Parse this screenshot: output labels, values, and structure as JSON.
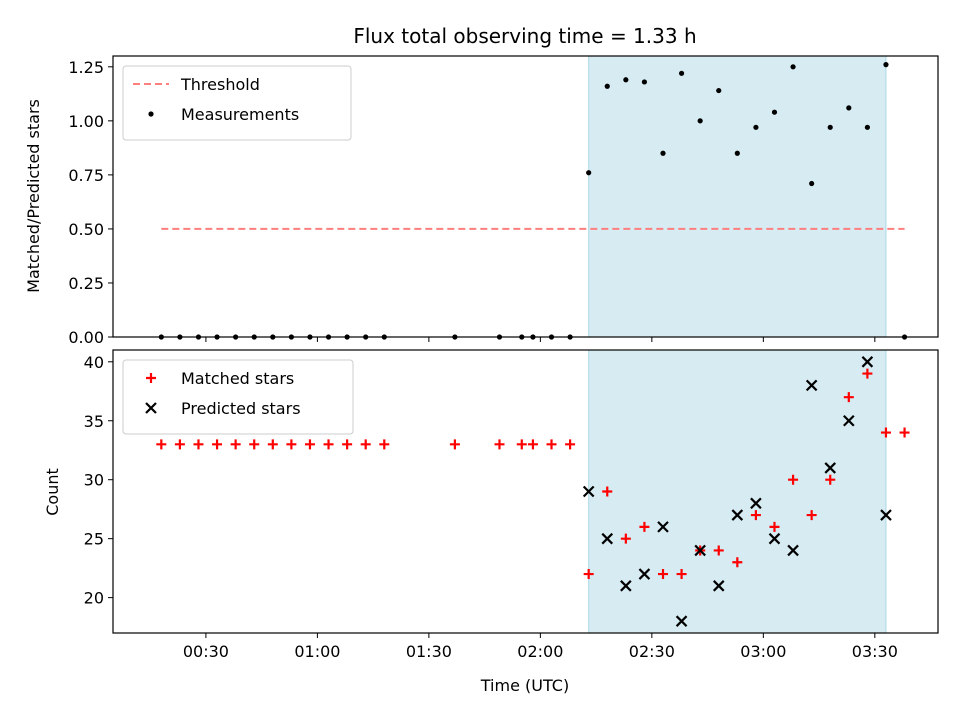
{
  "chart_data": [
    {
      "type": "scatter",
      "title": "Flux total observing time = 1.33 h",
      "ylabel": "Matched/Predicted stars",
      "xlim": [
        "00:05",
        "03:47"
      ],
      "ylim": [
        0,
        1.3
      ],
      "yticks": [
        0,
        0.25,
        0.5,
        0.75,
        1.0,
        1.25
      ],
      "ytick_labels": [
        "0.00",
        "0.25",
        "0.50",
        "0.75",
        "1.00",
        "1.25"
      ],
      "highlight_span": [
        "02:13",
        "03:33"
      ],
      "highlight_color": "#add8e6",
      "legend_position": "top-left",
      "threshold": {
        "name": "Threshold",
        "y": 0.5,
        "x_range": [
          "00:18",
          "03:38"
        ],
        "color": "#ff7f7f",
        "style": "dashed"
      },
      "series": [
        {
          "name": "Measurements",
          "color": "#000000",
          "marker": "dot",
          "points": [
            [
              "00:18",
              0
            ],
            [
              "00:23",
              0
            ],
            [
              "00:28",
              0
            ],
            [
              "00:33",
              0
            ],
            [
              "00:38",
              0
            ],
            [
              "00:43",
              0
            ],
            [
              "00:48",
              0
            ],
            [
              "00:53",
              0
            ],
            [
              "00:58",
              0
            ],
            [
              "01:03",
              0
            ],
            [
              "01:08",
              0
            ],
            [
              "01:13",
              0
            ],
            [
              "01:18",
              0
            ],
            [
              "01:37",
              0
            ],
            [
              "01:49",
              0
            ],
            [
              "01:55",
              0
            ],
            [
              "01:58",
              0
            ],
            [
              "02:03",
              0
            ],
            [
              "02:08",
              0
            ],
            [
              "02:13",
              0.76
            ],
            [
              "02:18",
              1.16
            ],
            [
              "02:23",
              1.19
            ],
            [
              "02:28",
              1.18
            ],
            [
              "02:33",
              0.85
            ],
            [
              "02:38",
              1.22
            ],
            [
              "02:43",
              1.0
            ],
            [
              "02:48",
              1.14
            ],
            [
              "02:53",
              0.85
            ],
            [
              "02:58",
              0.97
            ],
            [
              "03:03",
              1.04
            ],
            [
              "03:08",
              1.25
            ],
            [
              "03:13",
              0.71
            ],
            [
              "03:18",
              0.97
            ],
            [
              "03:23",
              1.06
            ],
            [
              "03:28",
              0.97
            ],
            [
              "03:33",
              1.26
            ],
            [
              "03:38",
              0
            ]
          ]
        }
      ]
    },
    {
      "type": "scatter",
      "xlabel": "Time (UTC)",
      "ylabel": "Count",
      "xlim": [
        "00:05",
        "03:47"
      ],
      "xticks": [
        "00:30",
        "01:00",
        "01:30",
        "02:00",
        "02:30",
        "03:00",
        "03:30"
      ],
      "ylim": [
        17,
        41
      ],
      "yticks": [
        20,
        25,
        30,
        35,
        40
      ],
      "highlight_span": [
        "02:13",
        "03:33"
      ],
      "highlight_color": "#add8e6",
      "legend_position": "top-left",
      "series": [
        {
          "name": "Matched stars",
          "color": "#ff0000",
          "marker": "plus",
          "points": [
            [
              "00:18",
              33
            ],
            [
              "00:23",
              33
            ],
            [
              "00:28",
              33
            ],
            [
              "00:33",
              33
            ],
            [
              "00:38",
              33
            ],
            [
              "00:43",
              33
            ],
            [
              "00:48",
              33
            ],
            [
              "00:53",
              33
            ],
            [
              "00:58",
              33
            ],
            [
              "01:03",
              33
            ],
            [
              "01:08",
              33
            ],
            [
              "01:13",
              33
            ],
            [
              "01:18",
              33
            ],
            [
              "01:37",
              33
            ],
            [
              "01:49",
              33
            ],
            [
              "01:55",
              33
            ],
            [
              "01:58",
              33
            ],
            [
              "02:03",
              33
            ],
            [
              "02:08",
              33
            ],
            [
              "02:13",
              22
            ],
            [
              "02:18",
              29
            ],
            [
              "02:23",
              25
            ],
            [
              "02:28",
              26
            ],
            [
              "02:33",
              22
            ],
            [
              "02:38",
              22
            ],
            [
              "02:43",
              24
            ],
            [
              "02:48",
              24
            ],
            [
              "02:53",
              23
            ],
            [
              "02:58",
              27
            ],
            [
              "03:03",
              26
            ],
            [
              "03:08",
              30
            ],
            [
              "03:13",
              27
            ],
            [
              "03:18",
              30
            ],
            [
              "03:23",
              37
            ],
            [
              "03:28",
              39
            ],
            [
              "03:33",
              34
            ],
            [
              "03:38",
              34
            ]
          ]
        },
        {
          "name": "Predicted stars",
          "color": "#000000",
          "marker": "x",
          "points": [
            [
              "02:13",
              29
            ],
            [
              "02:18",
              25
            ],
            [
              "02:23",
              21
            ],
            [
              "02:28",
              22
            ],
            [
              "02:33",
              26
            ],
            [
              "02:38",
              18
            ],
            [
              "02:43",
              24
            ],
            [
              "02:48",
              21
            ],
            [
              "02:53",
              27
            ],
            [
              "02:58",
              28
            ],
            [
              "03:03",
              25
            ],
            [
              "03:08",
              24
            ],
            [
              "03:13",
              38
            ],
            [
              "03:18",
              31
            ],
            [
              "03:23",
              35
            ],
            [
              "03:28",
              40
            ],
            [
              "03:33",
              27
            ]
          ]
        }
      ]
    }
  ]
}
